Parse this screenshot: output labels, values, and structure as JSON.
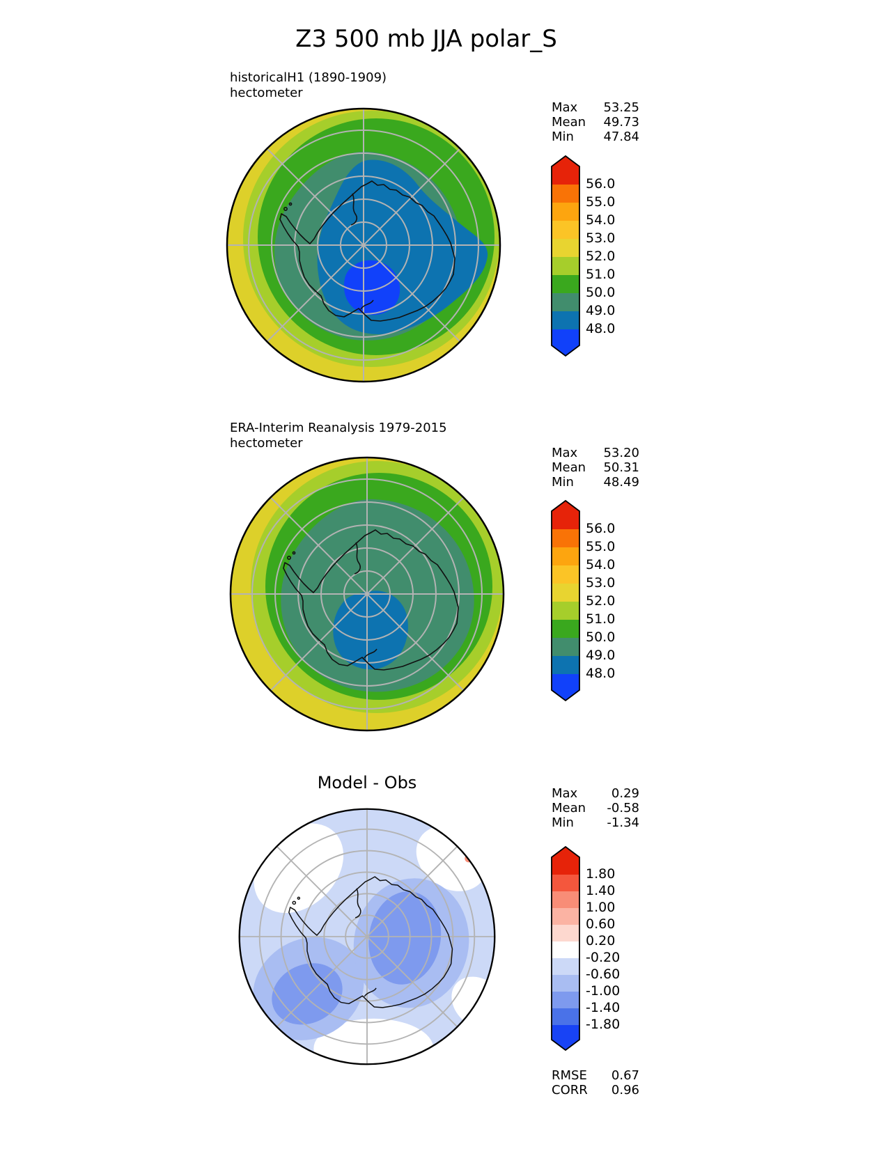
{
  "title": "Z3 500 mb JJA polar_S",
  "panels": [
    {
      "name": "model",
      "label": "historicalH1 (1890-1909)",
      "units": "hectometer",
      "stats": {
        "max_label": "Max",
        "max": "53.25",
        "mean_label": "Mean",
        "mean": "49.73",
        "min_label": "Min",
        "min": "47.84"
      },
      "colorbar": {
        "labels": [
          "56.0",
          "55.0",
          "54.0",
          "53.0",
          "52.0",
          "51.0",
          "50.0",
          "49.0",
          "48.0"
        ],
        "colors": [
          "#e62309",
          "#f97306",
          "#fda50f",
          "#fbc426",
          "#e8d430",
          "#a6ce2b",
          "#3aa81e",
          "#418d6d",
          "#0d73b0",
          "#1141fa"
        ]
      }
    },
    {
      "name": "obs",
      "label": "ERA-Interim Reanalysis 1979-2015",
      "units": "hectometer",
      "stats": {
        "max_label": "Max",
        "max": "53.20",
        "mean_label": "Mean",
        "mean": "50.31",
        "min_label": "Min",
        "min": "48.49"
      },
      "colorbar": {
        "labels": [
          "56.0",
          "55.0",
          "54.0",
          "53.0",
          "52.0",
          "51.0",
          "50.0",
          "49.0",
          "48.0"
        ],
        "colors": [
          "#e62309",
          "#f97306",
          "#fda50f",
          "#fbc426",
          "#e8d430",
          "#a6ce2b",
          "#3aa81e",
          "#418d6d",
          "#0d73b0",
          "#1141fa"
        ]
      }
    },
    {
      "name": "diff",
      "label": "Model - Obs",
      "stats": {
        "max_label": "Max",
        "max": "0.29",
        "mean_label": "Mean",
        "mean": "-0.58",
        "min_label": "Min",
        "min": "-1.34"
      },
      "colorbar": {
        "labels": [
          "1.80",
          "1.40",
          "1.00",
          "0.60",
          "0.20",
          "-0.20",
          "-0.60",
          "-1.00",
          "-1.40",
          "-1.80"
        ],
        "colors": [
          "#e62309",
          "#f4573d",
          "#f88d77",
          "#fbb3a3",
          "#fdd8cf",
          "#ffffff",
          "#ccd9f7",
          "#a9bdf2",
          "#7e9aee",
          "#4a72e8",
          "#1843f5"
        ]
      },
      "metrics": {
        "rmse_label": "RMSE",
        "rmse": "0.67",
        "corr_label": "CORR",
        "corr": "0.96"
      }
    }
  ],
  "chart_data": [
    {
      "type": "heatmap",
      "subtype": "filled-contour polar stereographic map (Southern Hemisphere)",
      "title": "historicalH1 (1890-1909)",
      "ylabel": "hectometer",
      "variable": "Z3 500 mb JJA",
      "contour_levels": [
        48.0,
        49.0,
        50.0,
        51.0,
        52.0,
        53.0,
        54.0,
        55.0,
        56.0
      ],
      "palette": [
        "#e62309",
        "#f97306",
        "#fda50f",
        "#fbc426",
        "#e8d430",
        "#a6ce2b",
        "#3aa81e",
        "#418d6d",
        "#0d73b0",
        "#1141fa"
      ],
      "stats": {
        "max": 53.25,
        "mean": 49.73,
        "min": 47.84
      },
      "pattern": "Minimum pocket below 48 hm just south of the pole toward the Ross Sea sector; 48-49 hm over most of Antarctica extending toward the Pacific sector; values increase outward through 49-50 and 50-51 rings to 51-53 hm at the equatorward map edge, widest yellow band on the Atlantic/Indian (lower-left) side",
      "graticule": "latitude circles every 10 degrees with 8 meridian spokes, gray",
      "legend_position": "right, vertical arrow-capped colorbar"
    },
    {
      "type": "heatmap",
      "subtype": "filled-contour polar stereographic map (Southern Hemisphere)",
      "title": "ERA-Interim Reanalysis 1979-2015",
      "ylabel": "hectometer",
      "variable": "Z3 500 mb JJA",
      "contour_levels": [
        48.0,
        49.0,
        50.0,
        51.0,
        52.0,
        53.0,
        54.0,
        55.0,
        56.0
      ],
      "palette": [
        "#e62309",
        "#f97306",
        "#fda50f",
        "#fbc426",
        "#e8d430",
        "#a6ce2b",
        "#3aa81e",
        "#418d6d",
        "#0d73b0",
        "#1141fa"
      ],
      "stats": {
        "max": 53.2,
        "mean": 50.31,
        "min": 48.49
      },
      "pattern": "48-49 hm pocket displaced off the pole toward the Ross Sea (below/left of pole); 49-50 hm over the rest of the continent; concentric increase to 52-53 hm at the map edge with the widest yellow band on the lower-left side",
      "graticule": "latitude circles every 10 degrees with 8 meridian spokes, gray",
      "legend_position": "right, vertical arrow-capped colorbar"
    },
    {
      "type": "heatmap",
      "subtype": "filled-contour polar stereographic difference map (Model minus Observations)",
      "title": "Model - Obs",
      "variable": "Z3 500 mb JJA bias",
      "contour_levels": [
        -1.8,
        -1.4,
        -1.0,
        -0.6,
        -0.2,
        0.2,
        0.6,
        1.0,
        1.4,
        1.8
      ],
      "palette": [
        "#e62309",
        "#f4573d",
        "#f88d77",
        "#fbb3a3",
        "#fdd8cf",
        "#ffffff",
        "#ccd9f7",
        "#a9bdf2",
        "#7e9aee",
        "#4a72e8",
        "#1843f5"
      ],
      "stats": {
        "max": 0.29,
        "mean": -0.58,
        "min": -1.34
      },
      "rmse": 0.67,
      "corr": 0.96,
      "pattern": "Negative bias nearly everywhere (light blues); strongest bias -1.0 to -1.4 in two lobes, one east of the pole over East Antarctica and one over the southeast Pacific (lower-left); near-zero white patches at the northwest, northeast and southern map edges; tiny positive sliver at the upper-right rim",
      "graticule": "latitude circles every 10 degrees with 8 meridian spokes, gray",
      "legend_position": "right, vertical arrow-capped colorbar"
    }
  ]
}
